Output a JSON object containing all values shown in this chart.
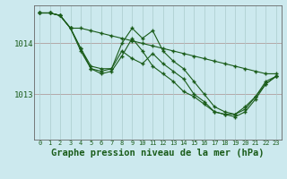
{
  "background_color": "#cce9ee",
  "grid_color": "#aacccc",
  "line_color": "#1a5c1a",
  "marker_color": "#1a5c1a",
  "xlabel": "Graphe pression niveau de la mer (hPa)",
  "xlabel_fontsize": 7.5,
  "tick_color": "#1a5c1a",
  "yticks": [
    1013,
    1014
  ],
  "ylim": [
    1012.1,
    1014.75
  ],
  "xlim": [
    -0.5,
    23.5
  ],
  "xticks": [
    0,
    1,
    2,
    3,
    4,
    5,
    6,
    7,
    8,
    9,
    10,
    11,
    12,
    13,
    14,
    15,
    16,
    17,
    18,
    19,
    20,
    21,
    22,
    23
  ],
  "series": [
    [
      1014.6,
      1014.6,
      1014.55,
      1014.3,
      1014.3,
      1014.25,
      1014.2,
      1014.15,
      1014.1,
      1014.05,
      1014.0,
      1013.95,
      1013.9,
      1013.85,
      1013.8,
      1013.75,
      1013.7,
      1013.65,
      1013.6,
      1013.55,
      1013.5,
      1013.45,
      1013.4,
      1013.4
    ],
    [
      1014.6,
      1014.6,
      1014.55,
      1014.3,
      1013.9,
      1013.55,
      1013.5,
      1013.5,
      1014.0,
      1014.3,
      1014.1,
      1014.25,
      1013.85,
      1013.65,
      1013.5,
      1013.25,
      1013.0,
      1012.75,
      1012.65,
      1012.6,
      1012.7,
      1012.95,
      1013.25,
      1013.35
    ],
    [
      1014.6,
      1014.6,
      1014.55,
      1014.3,
      1013.9,
      1013.5,
      1013.45,
      1013.5,
      1013.85,
      1013.7,
      1013.6,
      1013.8,
      1013.6,
      1013.45,
      1013.3,
      1013.0,
      1012.85,
      1012.65,
      1012.6,
      1012.55,
      1012.65,
      1012.9,
      1013.2,
      1013.35
    ],
    [
      1014.6,
      1014.6,
      1014.55,
      1014.3,
      1013.85,
      1013.5,
      1013.4,
      1013.45,
      1013.75,
      1014.1,
      1013.85,
      1013.55,
      1013.4,
      1013.25,
      1013.05,
      1012.95,
      1012.8,
      1012.65,
      1012.6,
      1012.6,
      1012.75,
      1012.95,
      1013.2,
      1013.35
    ]
  ]
}
